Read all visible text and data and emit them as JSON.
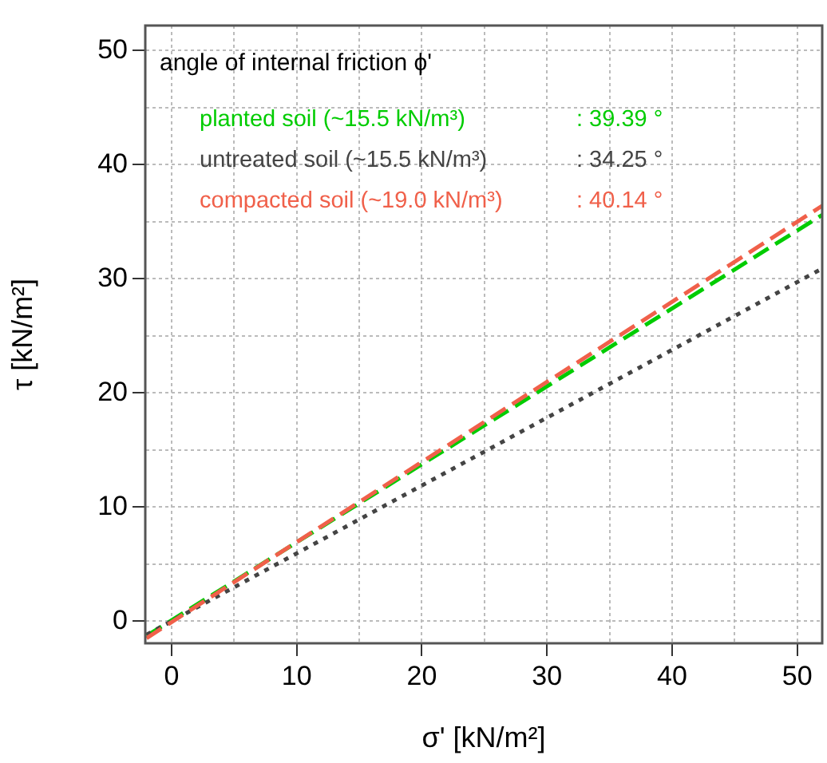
{
  "chart_data": {
    "type": "line",
    "xlabel": "σ' [kN/m²]",
    "ylabel": "τ [kN/m²]",
    "annotations": [
      "angle of internal friction ϕ'",
      ": 39.39 °",
      ": 34.25 °",
      ": 40.14 °"
    ],
    "x": [
      -2,
      52
    ],
    "series": [
      {
        "name": "planted soil (~15.5 kN/m³)",
        "color": "#00cc00",
        "values": [
          -1.3,
          35.6
        ],
        "line_style": "dashed"
      },
      {
        "name": "untreated soil (~15.5 kN/m³)",
        "color": "#444444",
        "values": [
          -1.2,
          30.9
        ],
        "line_style": "dotted"
      },
      {
        "name": "compacted soil (~19.0 kN/m³)",
        "color": "#f0604a",
        "values": [
          -1.5,
          36.4
        ],
        "line_style": "dashed"
      }
    ],
    "xlim": [
      -2.1,
      52
    ],
    "ylim": [
      -1.95,
      52.2
    ],
    "xticks": [
      0,
      {
        "value": 5,
        "label": null
      },
      10,
      {
        "value": 15,
        "label": null
      },
      20,
      {
        "value": 25,
        "label": null
      },
      30,
      {
        "value": 35,
        "label": null
      },
      40,
      {
        "value": 45,
        "label": null
      },
      50
    ],
    "yticks": [
      0,
      {
        "value": 5,
        "label": null
      },
      10,
      {
        "value": 15,
        "label": null
      },
      20,
      {
        "value": 25,
        "label": null
      },
      30,
      {
        "value": 35,
        "label": null
      },
      40,
      {
        "value": 45,
        "label": null
      },
      50
    ],
    "grid": true,
    "legend": "top left",
    "marker": "none"
  }
}
